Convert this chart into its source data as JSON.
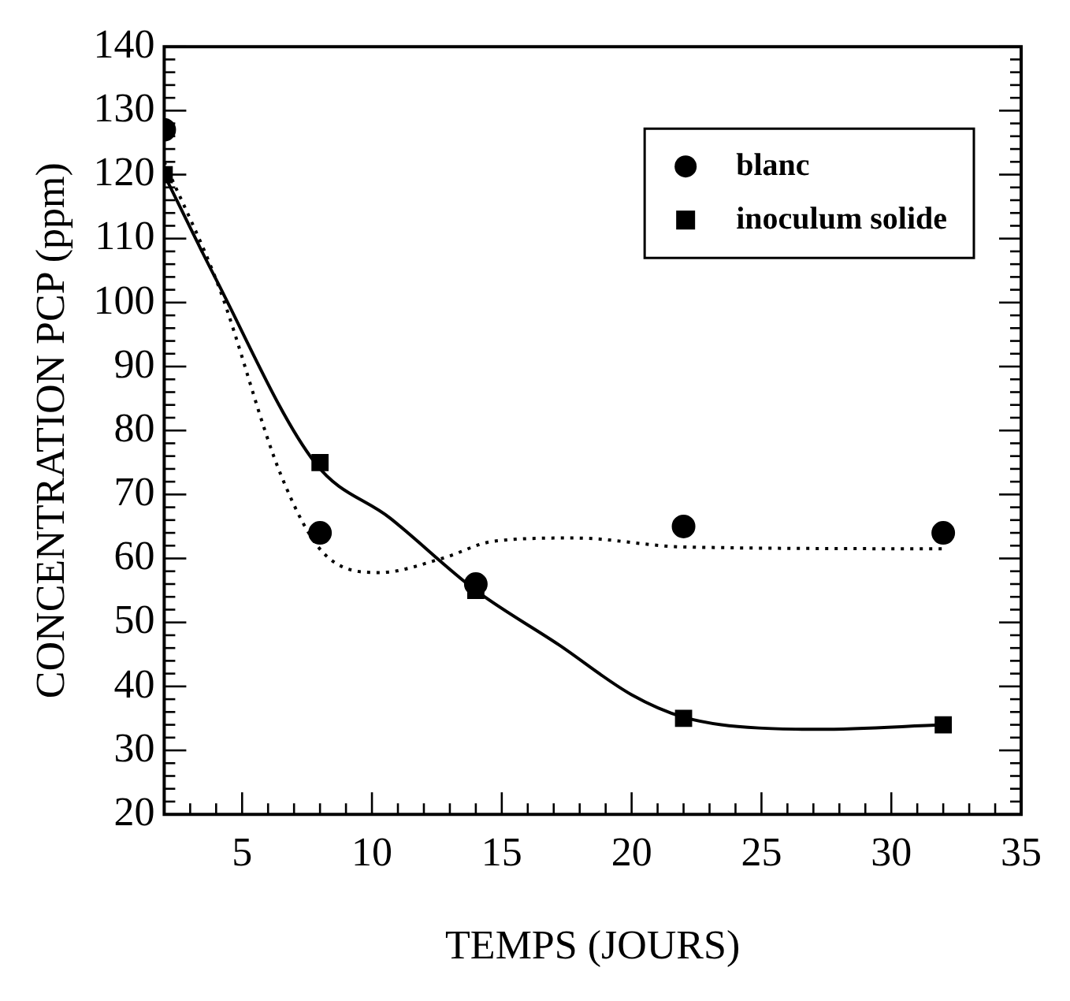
{
  "chart_data": {
    "type": "scatter",
    "xlabel": "TEMPS (JOURS)",
    "ylabel": "CONCENTRATION PCP (ppm)",
    "x": [
      2,
      8,
      14,
      22,
      32
    ],
    "xlim": [
      2,
      35
    ],
    "xticks": [
      5,
      10,
      15,
      20,
      25,
      30,
      35
    ],
    "ylim": [
      20,
      140
    ],
    "yticks": [
      20,
      30,
      40,
      50,
      60,
      70,
      80,
      90,
      100,
      110,
      120,
      130,
      140
    ],
    "grid": false,
    "legend": "top right",
    "series": [
      {
        "name": "blanc",
        "type": "scatter",
        "marker": "circle",
        "color": "#000000",
        "values": [
          127,
          64,
          56,
          65,
          64
        ]
      },
      {
        "name": "inoculum solide",
        "type": "scatter",
        "marker": "square",
        "color": "#000000",
        "values": [
          120,
          75,
          55,
          35,
          34
        ]
      },
      {
        "type": "line",
        "marker": "none",
        "line_style": "dotted",
        "color": "#000000",
        "x": [
          2,
          4.1,
          6.5,
          8.1,
          10.3,
          12.7,
          14.7,
          17.8,
          22,
          32
        ],
        "values": [
          122,
          102.5,
          73,
          61,
          57.8,
          60,
          62.7,
          63.2,
          61.8,
          61.5
        ]
      },
      {
        "type": "line",
        "marker": "none",
        "line_style": "solid",
        "color": "#000000",
        "x": [
          2,
          3.95,
          7.8,
          10.7,
          14,
          17.2,
          20,
          22,
          24.9,
          27.2,
          32
        ],
        "values": [
          120,
          104,
          75,
          66.3,
          55,
          46.5,
          38.7,
          35.2,
          33.5,
          33.3,
          34
        ]
      }
    ]
  }
}
